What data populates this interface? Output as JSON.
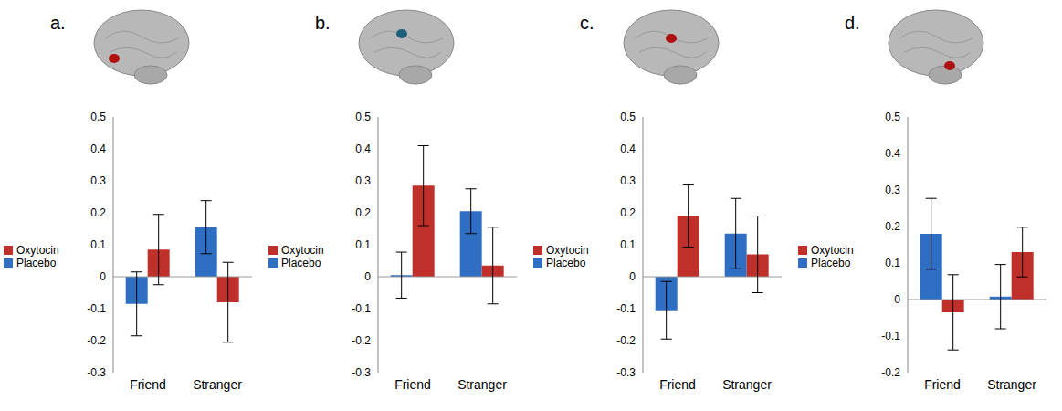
{
  "chart_data": [
    {
      "type": "bar",
      "title": "a.",
      "categories": [
        "Friend",
        "Stranger"
      ],
      "series": [
        {
          "name": "Placebo",
          "color": "#2e6fc4",
          "values": [
            -0.085,
            0.155
          ],
          "errors": [
            0.1,
            0.083
          ]
        },
        {
          "name": "Oxytocin",
          "color": "#c0302a",
          "values": [
            0.085,
            -0.08
          ],
          "errors": [
            0.11,
            0.125
          ]
        }
      ],
      "ylim": [
        -0.3,
        0.5
      ],
      "yticks": [
        -0.3,
        -0.2,
        -0.1,
        0,
        0.1,
        0.2,
        0.3,
        0.4,
        0.5
      ],
      "legend": "left"
    },
    {
      "type": "bar",
      "title": "b.",
      "categories": [
        "Friend",
        "Stranger"
      ],
      "series": [
        {
          "name": "Placebo",
          "color": "#2e6fc4",
          "values": [
            0.005,
            0.205
          ],
          "errors": [
            0.072,
            0.07
          ]
        },
        {
          "name": "Oxytocin",
          "color": "#c0302a",
          "values": [
            0.285,
            0.035
          ],
          "errors": [
            0.125,
            0.12
          ]
        }
      ],
      "ylim": [
        -0.3,
        0.5
      ],
      "yticks": [
        -0.3,
        -0.2,
        -0.1,
        0,
        0.1,
        0.2,
        0.3,
        0.4,
        0.5
      ],
      "legend": "left"
    },
    {
      "type": "bar",
      "title": "c.",
      "categories": [
        "Friend",
        "Stranger"
      ],
      "series": [
        {
          "name": "Placebo",
          "color": "#2e6fc4",
          "values": [
            -0.105,
            0.135
          ],
          "errors": [
            0.09,
            0.11
          ]
        },
        {
          "name": "Oxytocin",
          "color": "#c0302a",
          "values": [
            0.19,
            0.07
          ],
          "errors": [
            0.097,
            0.12
          ]
        }
      ],
      "ylim": [
        -0.3,
        0.5
      ],
      "yticks": [
        -0.3,
        -0.2,
        -0.1,
        0,
        0.1,
        0.2,
        0.3,
        0.4,
        0.5
      ],
      "legend": "left"
    },
    {
      "type": "bar",
      "title": "d.",
      "categories": [
        "Friend",
        "Stranger"
      ],
      "series": [
        {
          "name": "Placebo",
          "color": "#2e6fc4",
          "values": [
            0.18,
            0.008
          ],
          "errors": [
            0.097,
            0.088
          ]
        },
        {
          "name": "Oxytocin",
          "color": "#c0302a",
          "values": [
            -0.035,
            0.13
          ],
          "errors": [
            0.103,
            0.068
          ]
        }
      ],
      "ylim": [
        -0.2,
        0.5
      ],
      "yticks": [
        -0.2,
        -0.1,
        0,
        0.1,
        0.2,
        0.3,
        0.4,
        0.5
      ],
      "legend": "left"
    }
  ]
}
